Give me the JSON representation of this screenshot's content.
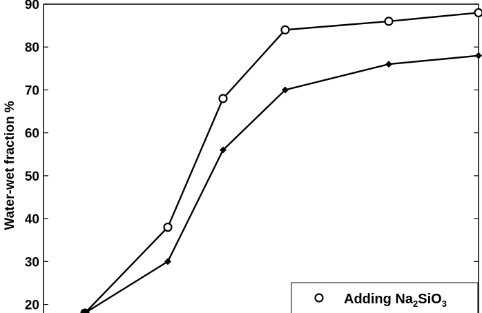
{
  "chart_data": {
    "type": "line",
    "xlabel": "",
    "ylabel": "Water-wet fraction %",
    "ylim": [
      18,
      90
    ],
    "yticks": [
      20,
      30,
      40,
      50,
      60,
      70,
      80,
      90
    ],
    "xlim": [
      0,
      6.3
    ],
    "grid": false,
    "legend_position": "bottom-right",
    "series": [
      {
        "name": "Adding Na2SiO3",
        "legend_parts": {
          "prefix": "Adding Na",
          "sub1": "2",
          "mid": "SiO",
          "sub2": "3"
        },
        "marker": "open-circle",
        "color": "#000000",
        "x": [
          0.6,
          1.8,
          2.6,
          3.5,
          5.0,
          6.3
        ],
        "y": [
          18,
          38,
          68,
          84,
          86,
          88
        ]
      },
      {
        "name": "",
        "marker": "diamond",
        "color": "#000000",
        "x": [
          0.6,
          1.8,
          2.6,
          3.5,
          5.0,
          6.3
        ],
        "y": [
          18,
          30,
          56,
          70,
          76,
          78
        ]
      }
    ]
  }
}
